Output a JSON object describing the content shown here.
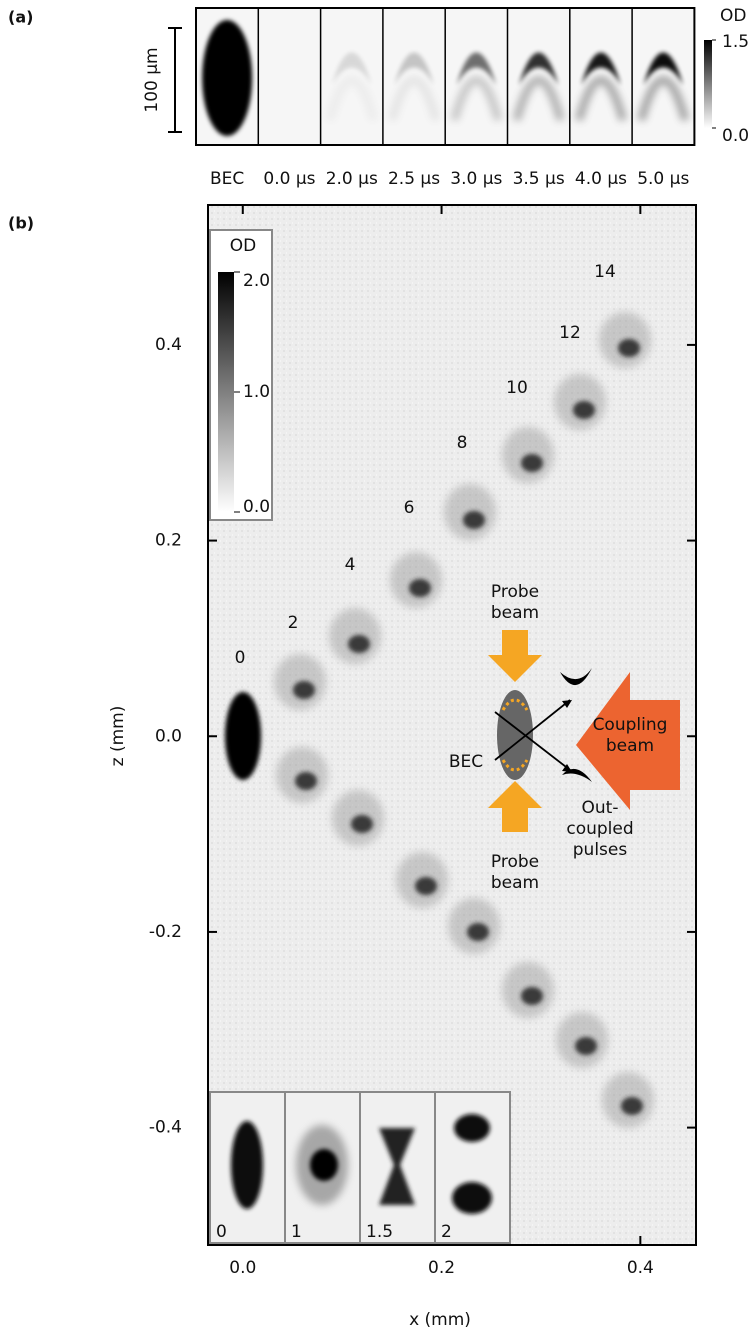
{
  "panel_a": {
    "label": "(a)",
    "scale_bar": "100 μm",
    "colorbar": {
      "title": "OD",
      "lim": [
        0,
        1.5
      ],
      "ticks": [
        1.5,
        {
          "value": 0,
          "label": "0.0"
        }
      ]
    },
    "frames": [
      "BEC",
      "0.0 μs",
      "2.0 μs",
      "2.5 μs",
      "3.0 μs",
      "3.5 μs",
      "4.0 μs",
      "5.0 μs"
    ]
  },
  "panel_b": {
    "label": "(b)",
    "xlabel": "x (mm)",
    "ylabel": "z (mm)",
    "xlim": [
      -0.035,
      0.456
    ],
    "ylim": [
      -0.52,
      0.543
    ],
    "xticks": [
      {
        "value": 0,
        "label": "0.0"
      },
      0.2,
      0.4
    ],
    "yticks": [
      -0.4,
      -0.2,
      {
        "value": 0,
        "label": "0.0"
      },
      0.2,
      0.4
    ],
    "colorbar": {
      "title": "OD",
      "lim": [
        0,
        2
      ],
      "ticks": [
        {
          "value": 2,
          "label": "2.0"
        },
        {
          "value": 1,
          "label": "1.0"
        },
        {
          "value": 0,
          "label": "0.0"
        }
      ]
    },
    "pulse_labels": [
      "0",
      "2",
      "4",
      "6",
      "8",
      "10",
      "12",
      "14"
    ],
    "inset_labels": [
      "0",
      "1",
      "1.5",
      "2"
    ],
    "schematic": {
      "probe_top": [
        "Probe",
        "beam"
      ],
      "probe_bottom": [
        "Probe",
        "beam"
      ],
      "bec": "BEC",
      "coupling": [
        "Coupling",
        "beam"
      ],
      "outcoupled": [
        "Out-",
        "coupled",
        "pulses"
      ]
    }
  }
}
